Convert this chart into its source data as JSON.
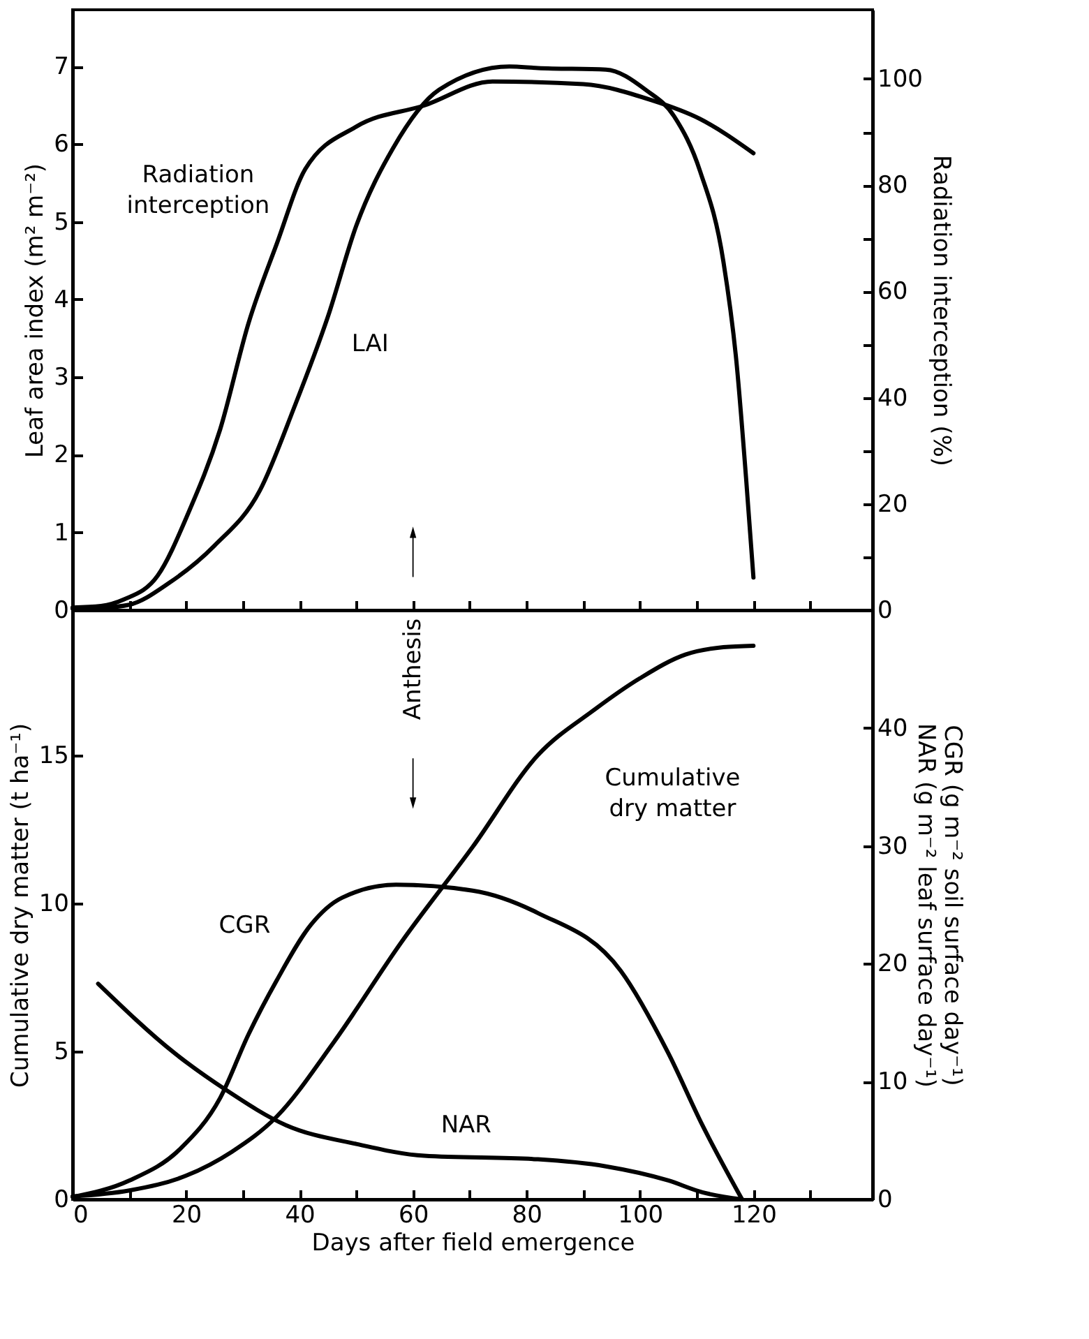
{
  "chart_data": [
    {
      "type": "line",
      "xlim": [
        0,
        141
      ],
      "xticks": [
        0,
        {
          "value": 10,
          "label": null
        },
        20,
        {
          "value": 30,
          "label": null
        },
        40,
        {
          "value": 50,
          "label": null
        },
        60,
        {
          "value": 70,
          "label": null
        },
        80,
        {
          "value": 90,
          "label": null
        },
        100,
        {
          "value": 110,
          "label": null
        },
        120,
        {
          "value": 130,
          "label": null
        }
      ],
      "ylim": [
        0,
        7.73
      ],
      "yticks": [
        0,
        1,
        2,
        3,
        4,
        5,
        6,
        7
      ],
      "y2lim": [
        0,
        113
      ],
      "y2ticks": [
        0,
        {
          "value": 10,
          "label": null
        },
        20,
        {
          "value": 30,
          "label": null
        },
        40,
        {
          "value": 50,
          "label": null
        },
        60,
        {
          "value": 70,
          "label": null
        },
        80,
        {
          "value": 90,
          "label": null
        },
        100
      ],
      "ylabel": "Leaf area index (m² m⁻²)",
      "y2label": "Radiation interception (%)",
      "tick_labels": "y",
      "line_style": "solid",
      "series": [
        {
          "name": "LAI",
          "color": "#000000",
          "x": [
            0,
            5,
            10,
            17,
            25,
            33,
            39,
            45,
            50,
            56.5,
            64.6,
            77,
            82,
            94,
            101,
            106,
            110.6,
            114.7,
            117,
            118.7,
            120
          ],
          "values": [
            0.02,
            0.03,
            0.07,
            0.35,
            0.83,
            1.54,
            2.6,
            3.78,
            4.95,
            5.95,
            6.7,
            7.0,
            6.98,
            6.96,
            6.7,
            6.36,
            5.65,
            4.49,
            3.2,
            1.7,
            0.42
          ]
        },
        {
          "name": "Radiation\ninterception",
          "color": "#000000",
          "axis": "y2",
          "x": [
            0,
            5,
            9,
            15,
            20.4,
            26,
            31,
            36,
            41,
            50,
            62,
            74,
            90,
            102,
            110.5,
            120
          ],
          "values": [
            0.5,
            0.8,
            2,
            6.5,
            18.3,
            34,
            54,
            69,
            83,
            91,
            95,
            99.5,
            99,
            96,
            92.5,
            86
          ]
        }
      ]
    },
    {
      "type": "line",
      "xlim": [
        0,
        141
      ],
      "xticks": [
        0,
        {
          "value": 10,
          "label": null
        },
        20,
        {
          "value": 30,
          "label": null
        },
        40,
        {
          "value": 50,
          "label": null
        },
        60,
        {
          "value": 70,
          "label": null
        },
        80,
        {
          "value": 90,
          "label": null
        },
        100,
        {
          "value": 110,
          "label": null
        },
        120,
        {
          "value": 130,
          "label": null
        }
      ],
      "ylim": [
        0,
        19.9
      ],
      "yticks": [
        0,
        5,
        10,
        15
      ],
      "y2lim": [
        0,
        50
      ],
      "y2ticks": [
        0,
        10,
        20,
        30,
        40
      ],
      "xlabel": "Days after field emergence",
      "ylabel": "Cumulative dry matter (t ha⁻¹)",
      "y2label": "CGR (g m⁻² soil surface day⁻¹)\nNAR (g m⁻² leaf surface day⁻¹)",
      "line_style": "solid",
      "series": [
        {
          "name": "Cumulative\ndry matter",
          "color": "#000000",
          "x": [
            0,
            10,
            20,
            28,
            36,
            46,
            58,
            70.5,
            82,
            91.7,
            100,
            108,
            114.7,
            120
          ],
          "values": [
            0.1,
            0.3,
            0.8,
            1.6,
            2.8,
            5.3,
            8.7,
            11.9,
            15,
            16.5,
            17.6,
            18.4,
            18.65,
            18.7
          ]
        },
        {
          "name": "CGR",
          "color": "#000000",
          "axis": "y2",
          "x": [
            0,
            10,
            19,
            26,
            31,
            36,
            42,
            47.5,
            57,
            70.5,
            82,
            96.6,
            105,
            111,
            118
          ],
          "values": [
            0.2,
            1.6,
            4.3,
            8.6,
            14,
            18.6,
            23.3,
            25.6,
            26.7,
            26.2,
            24.3,
            19.4,
            12.4,
            6.3,
            0
          ]
        },
        {
          "name": "NAR",
          "color": "#000000",
          "axis": "y2",
          "x": [
            4.5,
            18,
            27,
            37.6,
            50,
            62,
            82,
            94,
            105,
            111,
            118
          ],
          "values": [
            18.3,
            12.4,
            9.3,
            6.3,
            4.7,
            3.7,
            3.4,
            2.8,
            1.6,
            0.6,
            0
          ]
        }
      ],
      "annotations": [
        "Anthesis"
      ]
    }
  ]
}
